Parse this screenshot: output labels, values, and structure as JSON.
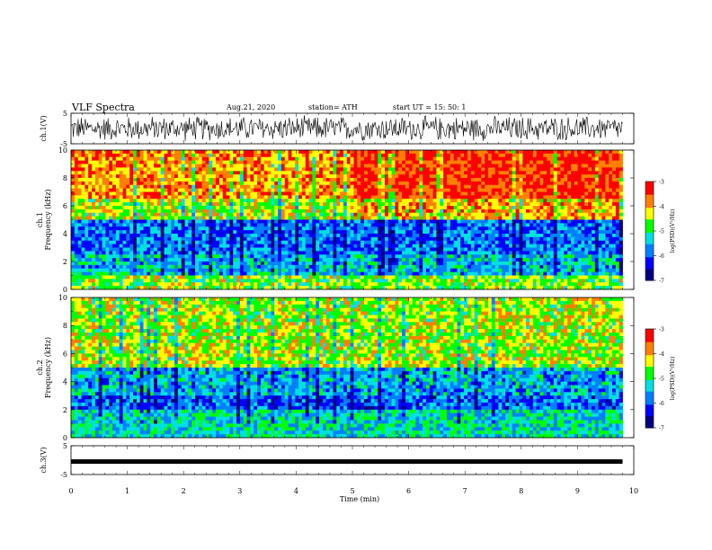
{
  "header": {
    "title": "VLF Spectra",
    "date": "Aug.21, 2020",
    "station": "station= ATH",
    "start": "start  UT =   15: 50: 1"
  },
  "colors": {
    "spectrum": [
      "#000080",
      "#0000ff",
      "#0080ff",
      "#00e0e0",
      "#00ff00",
      "#ffff00",
      "#ff8000",
      "#ff0000"
    ],
    "waveform": "#000000",
    "background": "#ffffff"
  },
  "chart_data": [
    {
      "type": "line",
      "name": "ch1-waveform",
      "ylabel": "ch.1(V)",
      "ylim": [
        -5,
        5
      ],
      "yticks": [
        "5",
        "-5"
      ],
      "xlim": [
        0,
        10
      ],
      "x_extent": [
        0,
        9.8
      ],
      "description_of_values": "dense noisy waveform, amplitude mostly between -4 and 4",
      "values_summary": {
        "min": -4.5,
        "max": 4.5
      }
    },
    {
      "type": "heatmap",
      "name": "ch1-spectrogram",
      "ylabel": "ch.1\nFrequency  (kHz)",
      "ylim": [
        0,
        10
      ],
      "yticks": [
        "0",
        "2",
        "4",
        "6",
        "8",
        "10"
      ],
      "xlim": [
        0,
        10
      ],
      "x_extent": [
        0,
        9.8
      ],
      "colorbar": {
        "label": "log(PSD)(V²/Hz)",
        "range": [
          -7,
          -3
        ],
        "ticks": [
          "-3",
          "-4",
          "-5",
          "-6",
          "-7"
        ]
      },
      "profile_bands": [
        {
          "fmin": 0,
          "fmax": 1,
          "log_psd": -4.6
        },
        {
          "fmin": 1,
          "fmax": 2.5,
          "log_psd": -5.4
        },
        {
          "fmin": 2.5,
          "fmax": 5,
          "log_psd": -5.8
        },
        {
          "fmin": 5,
          "fmax": 6.5,
          "log_psd": -4.4
        },
        {
          "fmin": 6.5,
          "fmax": 10,
          "log_psd": -3.8
        }
      ],
      "time_trend": "stronger (more red) high-frequency power after ~5 min"
    },
    {
      "type": "heatmap",
      "name": "ch2-spectrogram",
      "ylabel": "ch.2\nFrequency  (kHz)",
      "ylim": [
        0,
        10
      ],
      "yticks": [
        "0",
        "2",
        "4",
        "6",
        "8",
        "10"
      ],
      "xlim": [
        0,
        10
      ],
      "x_extent": [
        0,
        9.8
      ],
      "colorbar": {
        "label": "log(PSD)(V²/Hz)",
        "range": [
          -7,
          -3
        ],
        "ticks": [
          "-3",
          "-4",
          "-5",
          "-6",
          "-7"
        ]
      },
      "profile_bands": [
        {
          "fmin": 0,
          "fmax": 2,
          "log_psd": -5.2
        },
        {
          "fmin": 2,
          "fmax": 3,
          "log_psd": -5.9
        },
        {
          "fmin": 3,
          "fmax": 5,
          "log_psd": -5.5
        },
        {
          "fmin": 5,
          "fmax": 10,
          "log_psd": -4.4
        }
      ],
      "time_trend": "mostly green/yellow with scattered red above 5 kHz"
    },
    {
      "type": "line",
      "name": "ch3-waveform",
      "ylabel": "ch.3(V)",
      "ylim": [
        -5,
        5
      ],
      "yticks": [
        "5",
        "-5"
      ],
      "xlim": [
        0,
        10
      ],
      "x_extent": [
        0,
        9.8
      ],
      "values_summary": {
        "constant": -0.5
      }
    }
  ],
  "xaxis": {
    "label": "Time  (min)",
    "ticks": [
      "0",
      "1",
      "2",
      "3",
      "4",
      "5",
      "6",
      "7",
      "8",
      "9",
      "10"
    ],
    "range": [
      0,
      10
    ]
  }
}
